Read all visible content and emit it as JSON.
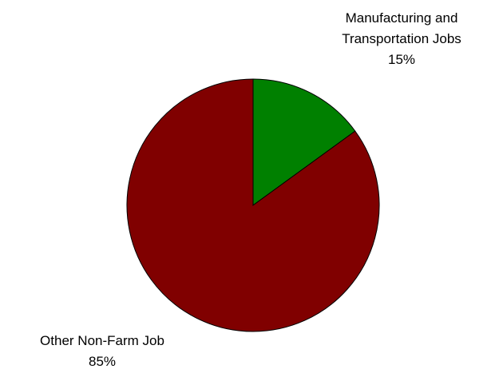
{
  "chart_data": {
    "type": "pie",
    "title": "",
    "slices": [
      {
        "label_lines": [
          "Manufacturing and",
          "Transportation Jobs"
        ],
        "value": 15,
        "value_label": "15%",
        "color": "#008000"
      },
      {
        "label_lines": [
          "Other Non-Farm Job"
        ],
        "value": 85,
        "value_label": "85%",
        "color": "#800000"
      }
    ],
    "start_angle_deg": 0,
    "direction": "clockwise",
    "stroke_color": "#000000",
    "legend": "none"
  }
}
